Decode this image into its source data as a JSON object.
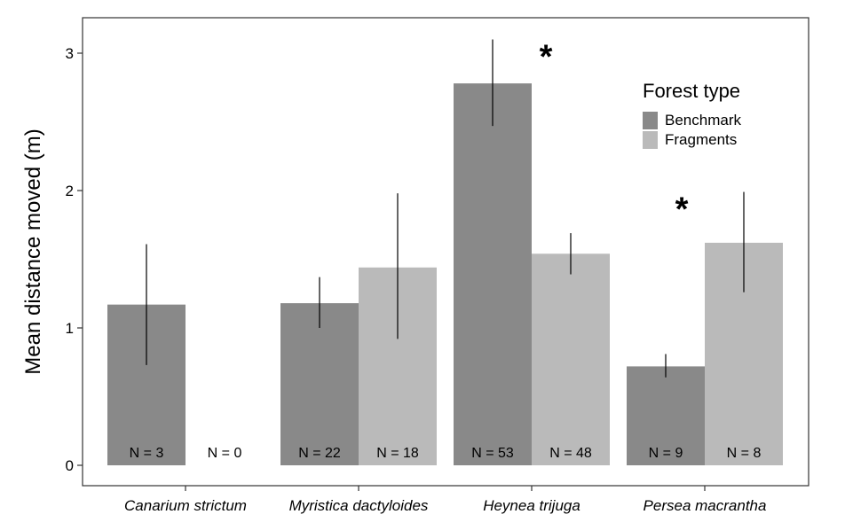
{
  "chart_data": {
    "type": "bar",
    "ylabel": "Mean distance moved (m)",
    "xlabel": "",
    "ylim": [
      0,
      3.3
    ],
    "yticks": [
      0,
      1,
      2,
      3
    ],
    "categories": [
      "Canarium strictum",
      "Myristica dactyloides",
      "Heynea trijuga",
      "Persea macrantha"
    ],
    "legend": {
      "title": "Forest type",
      "position": "top-right"
    },
    "grid": false,
    "series": [
      {
        "name": "Benchmark",
        "color": "#898989",
        "values": [
          1.17,
          1.18,
          2.78,
          0.72
        ],
        "error_low": [
          0.73,
          1.0,
          2.47,
          0.64
        ],
        "error_high": [
          1.61,
          1.37,
          3.1,
          0.81
        ],
        "n_labels": [
          "N = 3",
          "N = 22",
          "N = 53",
          "N = 9"
        ],
        "significant": [
          false,
          false,
          true,
          false
        ]
      },
      {
        "name": "Fragments",
        "color": "#bababa",
        "values": [
          0,
          1.44,
          1.54,
          1.62
        ],
        "error_low": [
          null,
          0.92,
          1.39,
          1.26
        ],
        "error_high": [
          null,
          1.98,
          1.69,
          1.99
        ],
        "n_labels": [
          "N = 0",
          "N = 18",
          "N = 48",
          "N = 8"
        ],
        "significant": [
          false,
          false,
          false,
          true
        ]
      }
    ],
    "significance_marker": "*"
  }
}
